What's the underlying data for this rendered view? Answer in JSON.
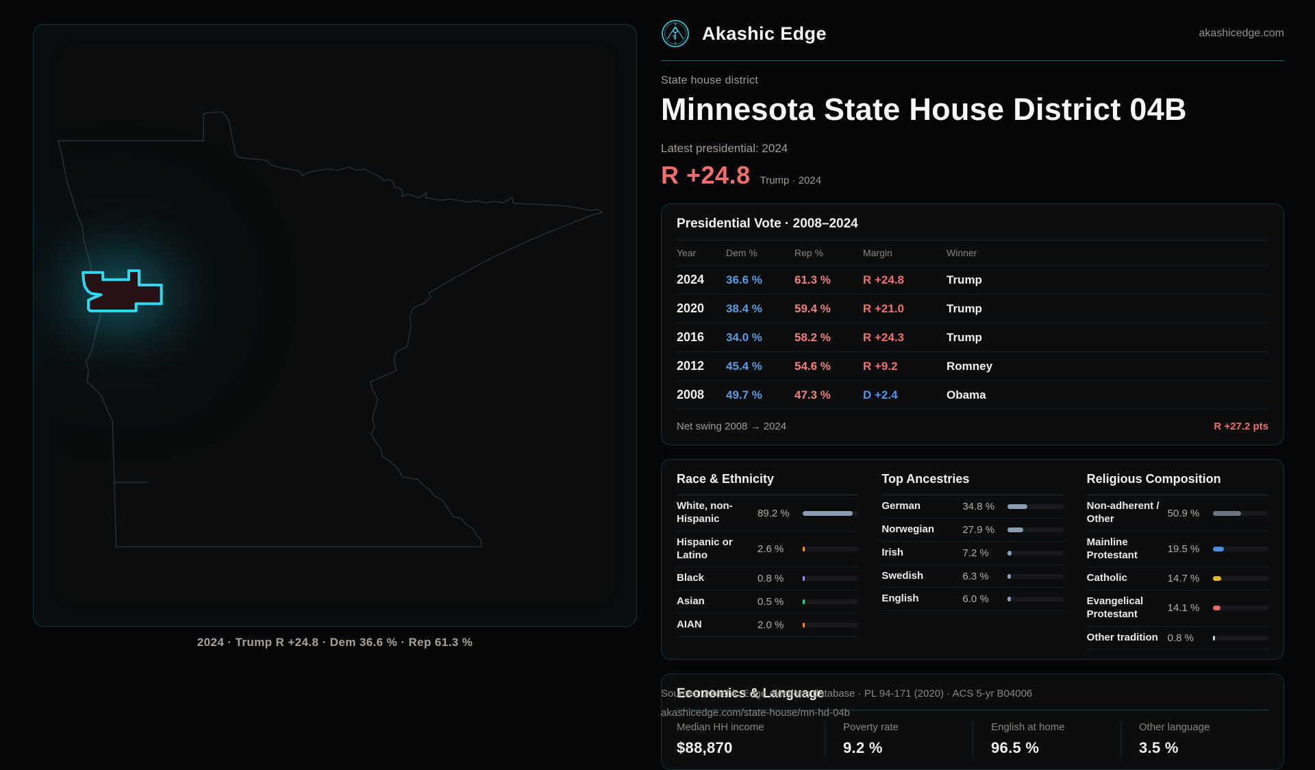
{
  "brand": {
    "name": "Akashic Edge",
    "domain": "akashicedge.com"
  },
  "page": {
    "eyebrow": "State house district",
    "title": "Minnesota State House District 04B",
    "latest_label": "Latest presidential: 2024",
    "headline_margin": "R +24.8",
    "headline_note": "Trump · 2024"
  },
  "map": {
    "caption": "2024 · Trump R +24.8 · Dem 36.6 % · Rep 61.3 %"
  },
  "presidential": {
    "title": "Presidential Vote · 2008–2024",
    "columns": {
      "year": "Year",
      "dem": "Dem %",
      "rep": "Rep %",
      "margin": "Margin",
      "winner": "Winner"
    },
    "rows": [
      {
        "year": "2024",
        "dem": "36.6 %",
        "rep": "61.3 %",
        "margin": "R +24.8",
        "party": "R",
        "winner": "Trump"
      },
      {
        "year": "2020",
        "dem": "38.4 %",
        "rep": "59.4 %",
        "margin": "R +21.0",
        "party": "R",
        "winner": "Trump"
      },
      {
        "year": "2016",
        "dem": "34.0 %",
        "rep": "58.2 %",
        "margin": "R +24.3",
        "party": "R",
        "winner": "Trump"
      },
      {
        "year": "2012",
        "dem": "45.4 %",
        "rep": "54.6 %",
        "margin": "R +9.2",
        "party": "R",
        "winner": "Romney"
      },
      {
        "year": "2008",
        "dem": "49.7 %",
        "rep": "47.3 %",
        "margin": "D +2.4",
        "party": "D",
        "winner": "Obama"
      }
    ],
    "net_swing_label": "Net swing 2008 → 2024",
    "net_swing_value": "R +27.2 pts"
  },
  "demographics": {
    "race": {
      "title": "Race & Ethnicity",
      "rows": [
        {
          "label": "White, non-Hispanic",
          "value": "89.2 %",
          "pct": 89.2,
          "color": "#8b9cb3"
        },
        {
          "label": "Hispanic or Latino",
          "value": "2.6 %",
          "pct": 2.6,
          "color": "#e79a28"
        },
        {
          "label": "Black",
          "value": "0.8 %",
          "pct": 0.8,
          "color": "#9c8df2"
        },
        {
          "label": "Asian",
          "value": "0.5 %",
          "pct": 0.5,
          "color": "#2fcf96"
        },
        {
          "label": "AIAN",
          "value": "2.0 %",
          "pct": 2.0,
          "color": "#e78a28"
        }
      ]
    },
    "ancestries": {
      "title": "Top Ancestries",
      "rows": [
        {
          "label": "German",
          "value": "34.8 %",
          "pct": 34.8,
          "color": "#8b9cb3"
        },
        {
          "label": "Norwegian",
          "value": "27.9 %",
          "pct": 27.9,
          "color": "#8b9cb3"
        },
        {
          "label": "Irish",
          "value": "7.2 %",
          "pct": 7.2,
          "color": "#8b9cb3"
        },
        {
          "label": "Swedish",
          "value": "6.3 %",
          "pct": 6.3,
          "color": "#8b9cb3"
        },
        {
          "label": "English",
          "value": "6.0 %",
          "pct": 6.0,
          "color": "#8b9cb3"
        }
      ]
    },
    "religion": {
      "title": "Religious Composition",
      "rows": [
        {
          "label": "Non-adherent / Other",
          "value": "50.9 %",
          "pct": 50.9,
          "color": "#6e7683"
        },
        {
          "label": "Mainline Protestant",
          "value": "19.5 %",
          "pct": 19.5,
          "color": "#4a8fe2"
        },
        {
          "label": "Catholic",
          "value": "14.7 %",
          "pct": 14.7,
          "color": "#e5b622"
        },
        {
          "label": "Evangelical Protestant",
          "value": "14.1 %",
          "pct": 14.1,
          "color": "#e46a6a"
        },
        {
          "label": "Other tradition",
          "value": "0.8 %",
          "pct": 0.8,
          "color": "#cfd2d4"
        }
      ]
    }
  },
  "economics": {
    "title": "Economics & Language",
    "stats": [
      {
        "label": "Median HH income",
        "value": "$88,870"
      },
      {
        "label": "Poverty rate",
        "value": "9.2 %"
      },
      {
        "label": "English at home",
        "value": "96.5 %"
      },
      {
        "label": "Other language",
        "value": "3.5 %"
      }
    ]
  },
  "sources": {
    "line1": "Sources: Akashic Edge elections database · PL 94-171 (2020) · ACS 5-yr B04006",
    "line2": "akashicedge.com/state-house/mn-hd-04b"
  },
  "colors": {
    "accent_cyan": "#2fd9f2",
    "dem_blue": "#5b9ce0",
    "rep_red": "#f08080",
    "margin_red": "#f26e6e",
    "margin_blue": "#4f93ea"
  }
}
